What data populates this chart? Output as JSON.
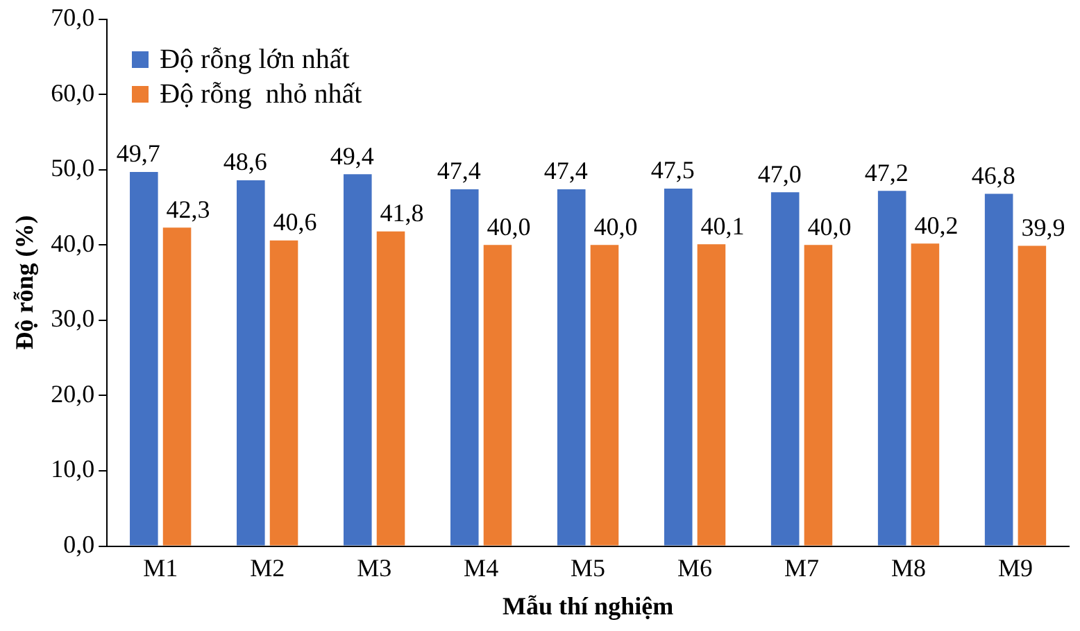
{
  "chart_data": {
    "type": "bar",
    "xlabel": "Mẫu thí nghiệm",
    "ylabel": "Độ rỗng (%)",
    "categories": [
      "M1",
      "M2",
      "M3",
      "M4",
      "M5",
      "M6",
      "M7",
      "M8",
      "M9"
    ],
    "series": [
      {
        "name": "Độ rỗng lớn nhất",
        "color": "#4472c4",
        "values": [
          49.7,
          48.6,
          49.4,
          47.4,
          47.4,
          47.5,
          47.0,
          47.2,
          46.8
        ],
        "value_labels": [
          "49,7",
          "48,6",
          "49,4",
          "47,4",
          "47,4",
          "47,5",
          "47,0",
          "47,2",
          "46,8"
        ]
      },
      {
        "name": "Độ rỗng  nhỏ nhất",
        "color": "#ed7d31",
        "values": [
          42.3,
          40.6,
          41.8,
          40.0,
          40.0,
          40.1,
          40.0,
          40.2,
          39.9
        ],
        "value_labels": [
          "42,3",
          "40,6",
          "41,8",
          "40,0",
          "40,0",
          "40,1",
          "40,0",
          "40,2",
          "39,9"
        ]
      }
    ],
    "ylim": [
      0,
      70
    ],
    "yticks": [
      {
        "value": 0,
        "label": "0,0"
      },
      {
        "value": 10,
        "label": "10,0"
      },
      {
        "value": 20,
        "label": "20,0"
      },
      {
        "value": 30,
        "label": "30,0"
      },
      {
        "value": 40,
        "label": "40,0"
      },
      {
        "value": 50,
        "label": "50,0"
      },
      {
        "value": 60,
        "label": "60,0"
      },
      {
        "value": 70,
        "label": "70,0"
      }
    ],
    "grid": false,
    "legend": "top left"
  }
}
